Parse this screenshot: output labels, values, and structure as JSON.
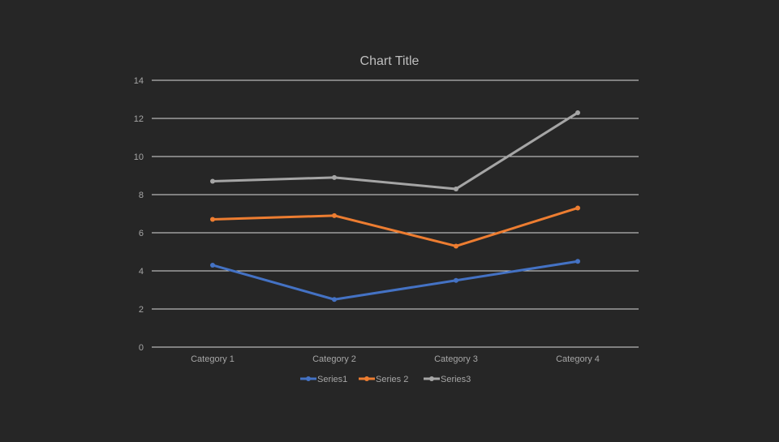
{
  "chart_data": {
    "type": "line",
    "title": "Chart Title",
    "xlabel": "",
    "ylabel": "",
    "categories": [
      "Category 1",
      "Category 2",
      "Category 3",
      "Category 4"
    ],
    "ylim": [
      0,
      14
    ],
    "yticks": [
      0,
      2,
      4,
      6,
      8,
      10,
      12,
      14
    ],
    "grid": true,
    "legend_position": "bottom",
    "series": [
      {
        "name": "Series1",
        "values": [
          4.3,
          2.5,
          3.5,
          4.5
        ],
        "color": "#4472C4"
      },
      {
        "name": "Series 2",
        "values": [
          6.7,
          6.9,
          5.3,
          7.3
        ],
        "color": "#ED7D31"
      },
      {
        "name": "Series3",
        "values": [
          8.7,
          8.9,
          8.3,
          12.3
        ],
        "color": "#A5A5A5"
      }
    ]
  },
  "colors": {
    "background": "#262626",
    "grid": "#D9D9D9",
    "text": "#A6A6A6",
    "title": "#BFBFBF"
  }
}
